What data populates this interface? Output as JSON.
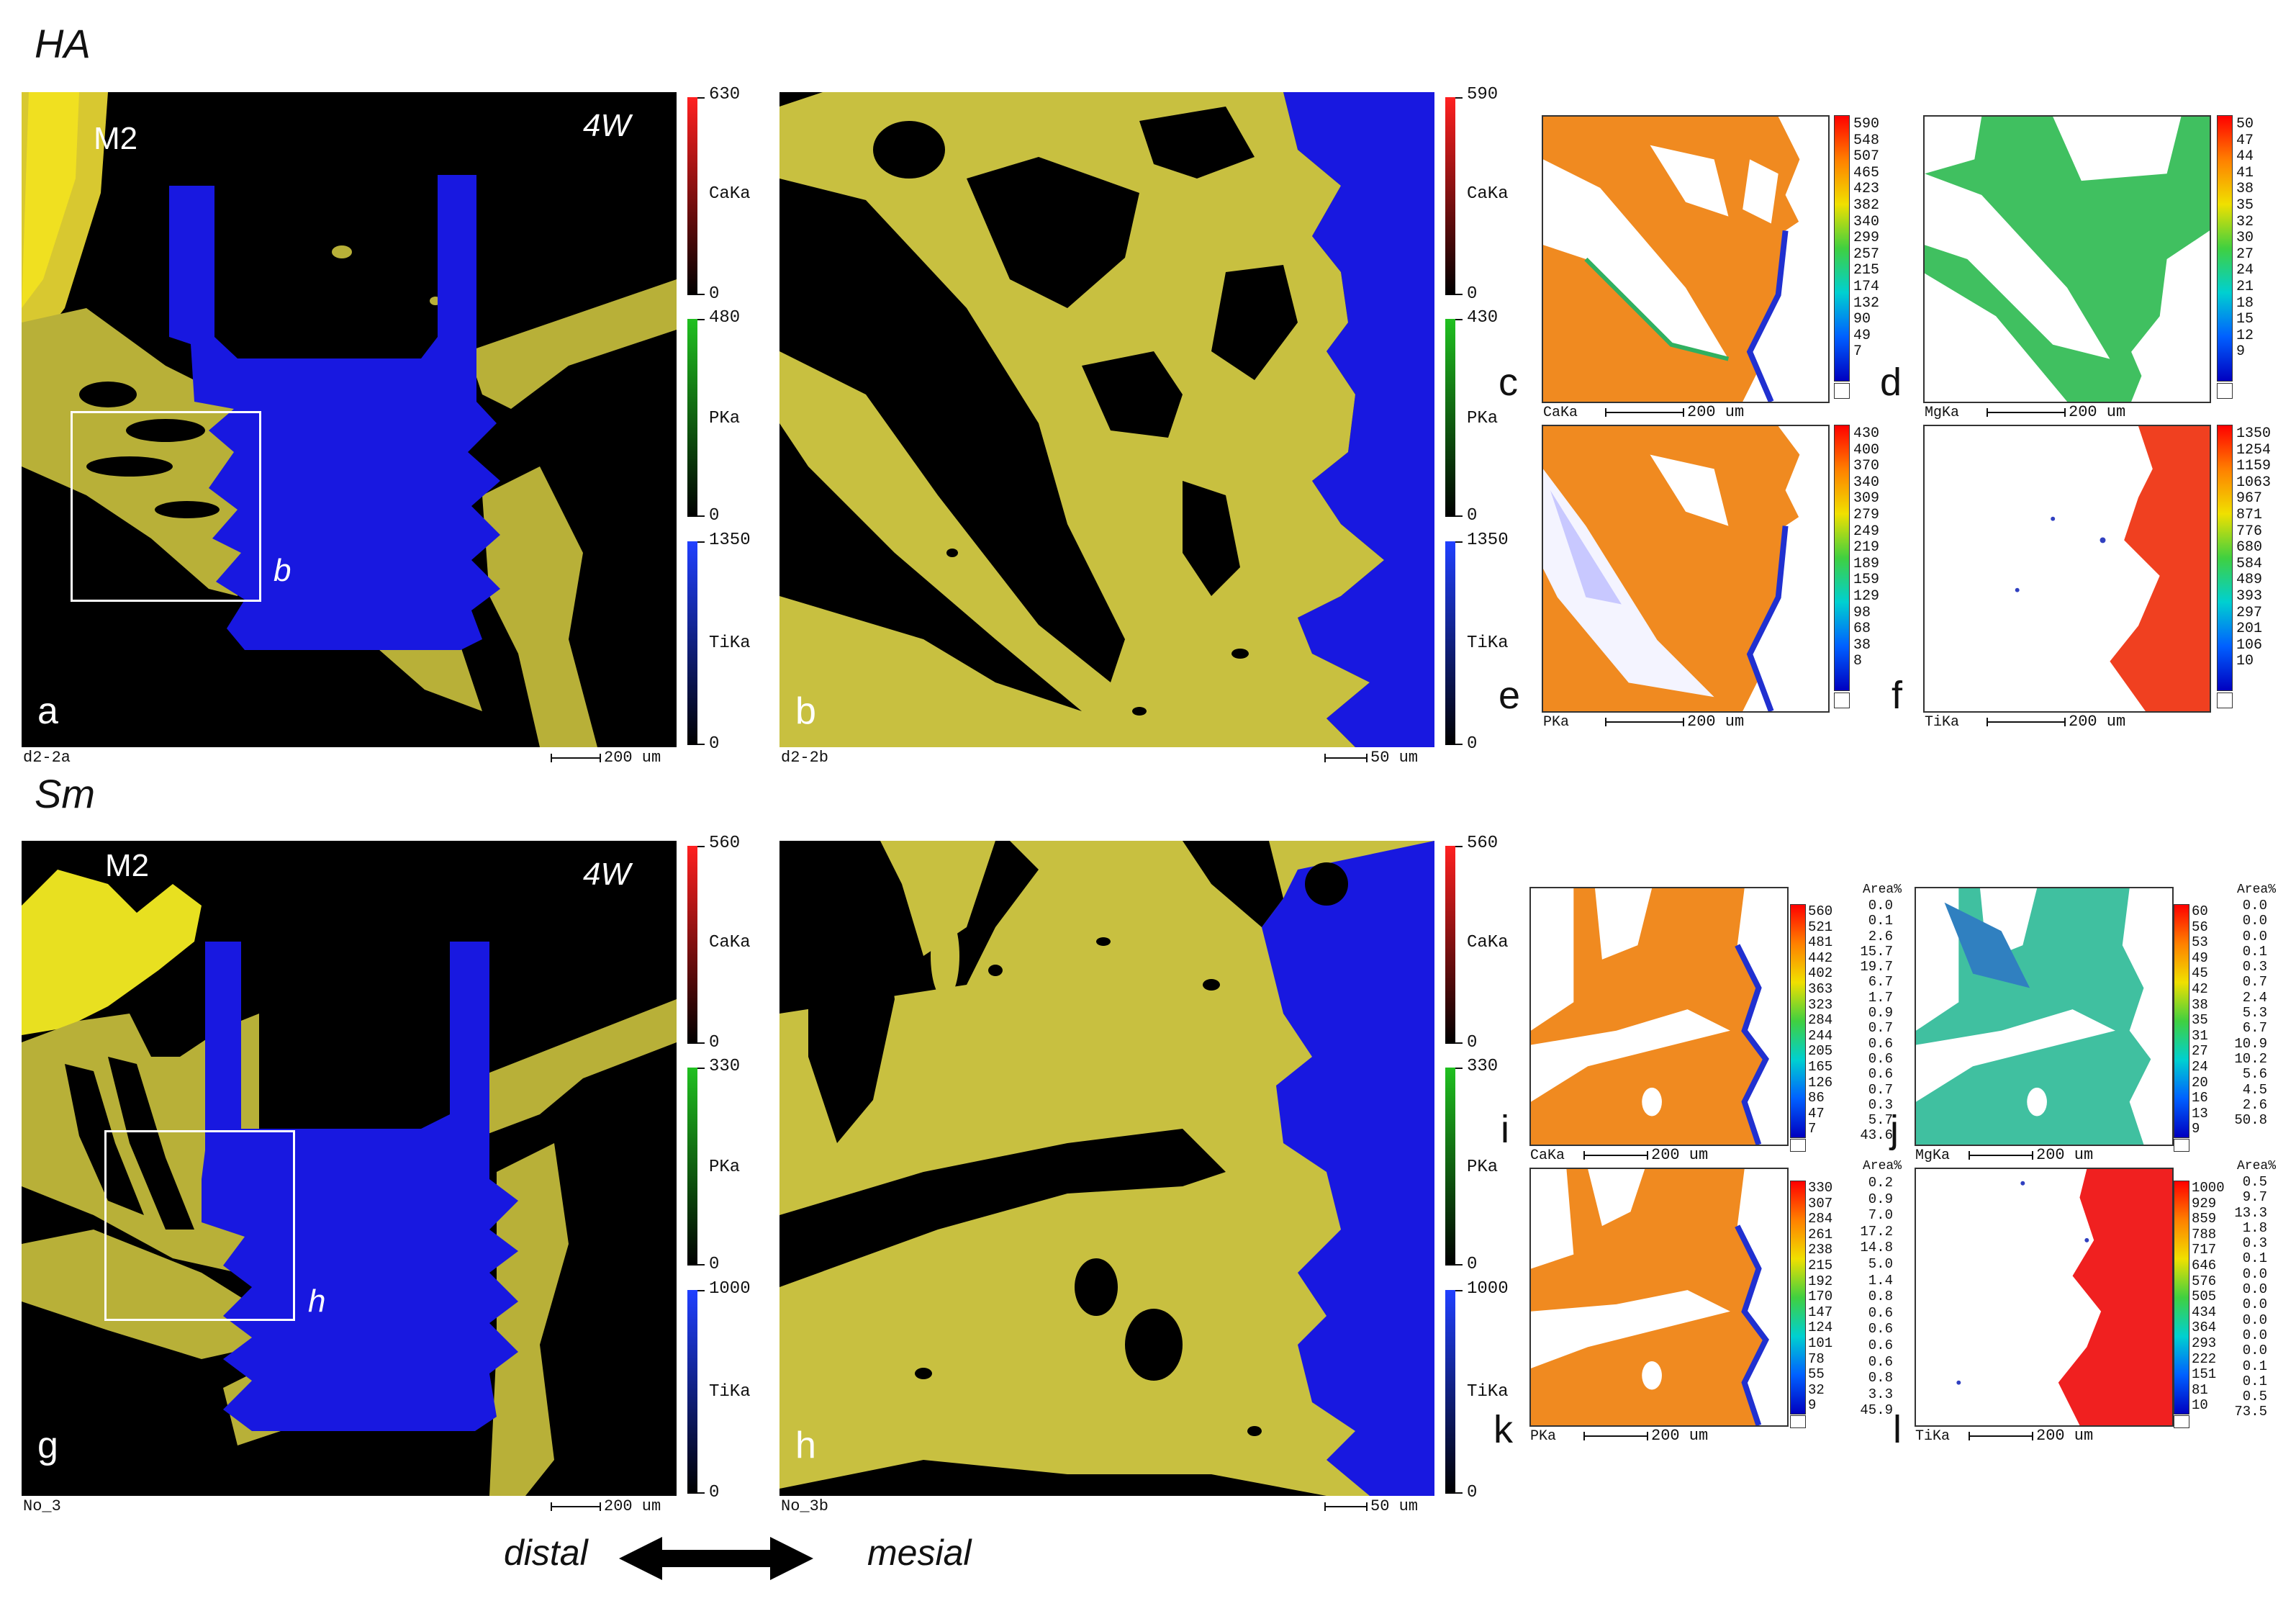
{
  "groups": {
    "top": {
      "title": "HA",
      "panel_a": {
        "letter": "a",
        "tag": "4W",
        "tooth": "M2",
        "roi_label": "b",
        "caption": "d2-2a",
        "scale": "200 um",
        "colorbars": [
          {
            "max": "630",
            "min": "0",
            "element": "CaKa",
            "color": "#ff2020"
          },
          {
            "max": "480",
            "min": "0",
            "element": "PKa",
            "color": "#20c020"
          },
          {
            "max": "1350",
            "min": "0",
            "element": "TiKa",
            "color": "#2040ff"
          }
        ]
      },
      "panel_b": {
        "letter": "b",
        "caption": "d2-2b",
        "scale": "50 um",
        "colorbars": [
          {
            "max": "590",
            "min": "0",
            "element": "CaKa",
            "color": "#ff2020"
          },
          {
            "max": "430",
            "min": "0",
            "element": "PKa",
            "color": "#20c020"
          },
          {
            "max": "1350",
            "min": "0",
            "element": "TiKa",
            "color": "#2040ff"
          }
        ]
      },
      "maps": [
        {
          "letter": "c",
          "element": "CaKa",
          "scale": "200 um",
          "values": [
            "590",
            "548",
            "507",
            "465",
            "423",
            "382",
            "340",
            "299",
            "257",
            "215",
            "174",
            "132",
            "90",
            "49",
            "7"
          ]
        },
        {
          "letter": "d",
          "element": "MgKa",
          "scale": "200 um",
          "values": [
            "50",
            "47",
            "44",
            "41",
            "38",
            "35",
            "32",
            "30",
            "27",
            "24",
            "21",
            "18",
            "15",
            "12",
            "9"
          ]
        },
        {
          "letter": "e",
          "element": "PKa",
          "scale": "200 um",
          "values": [
            "430",
            "400",
            "370",
            "340",
            "309",
            "279",
            "249",
            "219",
            "189",
            "159",
            "129",
            "98",
            "68",
            "38",
            "8"
          ]
        },
        {
          "letter": "f",
          "element": "TiKa",
          "scale": "200 um",
          "values": [
            "1350",
            "1254",
            "1159",
            "1063",
            "967",
            "871",
            "776",
            "680",
            "584",
            "489",
            "393",
            "297",
            "201",
            "106",
            "10"
          ]
        }
      ]
    },
    "bottom": {
      "title": "Sm",
      "panel_g": {
        "letter": "g",
        "tag": "4W",
        "tooth": "M2",
        "roi_label": "h",
        "caption": "No_3",
        "scale": "200 um",
        "colorbars": [
          {
            "max": "560",
            "min": "0",
            "element": "CaKa",
            "color": "#ff2020"
          },
          {
            "max": "330",
            "min": "0",
            "element": "PKa",
            "color": "#20c020"
          },
          {
            "max": "1000",
            "min": "0",
            "element": "TiKa",
            "color": "#2040ff"
          }
        ]
      },
      "panel_h": {
        "letter": "h",
        "caption": "No_3b",
        "scale": "50 um",
        "colorbars": [
          {
            "max": "560",
            "min": "0",
            "element": "CaKa",
            "color": "#ff2020"
          },
          {
            "max": "330",
            "min": "0",
            "element": "PKa",
            "color": "#20c020"
          },
          {
            "max": "1000",
            "min": "0",
            "element": "TiKa",
            "color": "#2040ff"
          }
        ]
      },
      "maps": [
        {
          "letter": "i",
          "element": "CaKa",
          "scale": "200 um",
          "area_header": "Area%",
          "values": [
            "560",
            "521",
            "481",
            "442",
            "402",
            "363",
            "323",
            "284",
            "244",
            "205",
            "165",
            "126",
            "86",
            "47",
            "7"
          ],
          "area": [
            "0.0",
            "0.1",
            "2.6",
            "15.7",
            "19.7",
            "6.7",
            "1.7",
            "0.9",
            "0.7",
            "0.6",
            "0.6",
            "0.6",
            "0.7",
            "0.3",
            "5.7",
            "43.6"
          ]
        },
        {
          "letter": "j",
          "element": "MgKa",
          "scale": "200 um",
          "area_header": "Area%",
          "values": [
            "60",
            "56",
            "53",
            "49",
            "45",
            "42",
            "38",
            "35",
            "31",
            "27",
            "24",
            "20",
            "16",
            "13",
            "9"
          ],
          "area": [
            "0.0",
            "0.0",
            "0.0",
            "0.1",
            "0.3",
            "0.7",
            "2.4",
            "5.3",
            "6.7",
            "10.9",
            "10.2",
            "5.6",
            "4.5",
            "2.6",
            "50.8"
          ]
        },
        {
          "letter": "k",
          "element": "PKa",
          "scale": "200 um",
          "area_header": "Area%",
          "values": [
            "330",
            "307",
            "284",
            "261",
            "238",
            "215",
            "192",
            "170",
            "147",
            "124",
            "101",
            "78",
            "55",
            "32",
            "9"
          ],
          "area": [
            "0.2",
            "0.9",
            "7.0",
            "17.2",
            "14.8",
            "5.0",
            "1.4",
            "0.8",
            "0.6",
            "0.6",
            "0.6",
            "0.6",
            "0.8",
            "3.3",
            "45.9"
          ]
        },
        {
          "letter": "l",
          "element": "TiKa",
          "scale": "200 um",
          "area_header": "Area%",
          "values": [
            "1000",
            "929",
            "859",
            "788",
            "717",
            "646",
            "576",
            "505",
            "434",
            "364",
            "293",
            "222",
            "151",
            "81",
            "10"
          ],
          "area": [
            "0.5",
            "9.7",
            "13.3",
            "1.8",
            "0.3",
            "0.1",
            "0.0",
            "0.0",
            "0.0",
            "0.0",
            "0.0",
            "0.0",
            "0.1",
            "0.1",
            "0.5",
            "73.5"
          ]
        }
      ]
    }
  },
  "direction": {
    "left": "distal",
    "right": "mesial"
  },
  "colors": {
    "bone": "#c8c040",
    "implant": "#1818e0",
    "enamel": "#e8e020",
    "background": "#000000"
  }
}
